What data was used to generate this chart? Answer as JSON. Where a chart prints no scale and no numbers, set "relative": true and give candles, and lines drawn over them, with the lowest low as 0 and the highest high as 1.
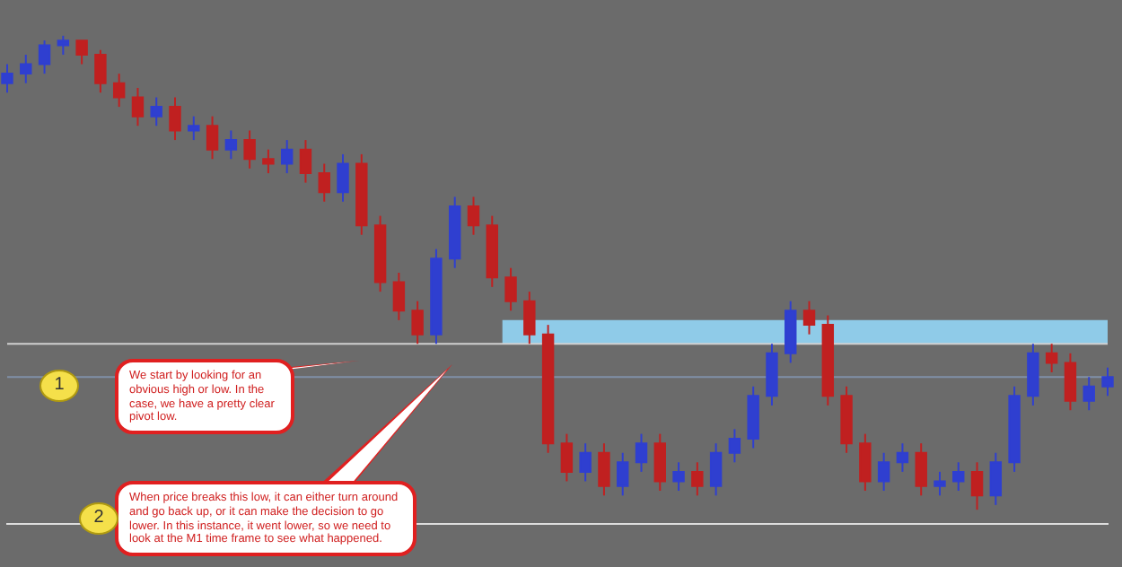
{
  "chart_data": {
    "type": "candlestick",
    "relative": true,
    "categories": [
      null,
      null,
      null,
      null,
      null,
      null,
      null,
      null,
      null,
      null,
      null,
      null,
      null,
      null,
      null,
      null,
      null,
      null,
      null,
      null,
      null,
      null,
      null,
      null,
      null,
      null,
      null,
      null,
      null,
      null,
      null,
      null,
      null,
      null,
      null,
      null,
      null,
      null,
      null,
      null,
      null,
      null,
      null,
      null,
      null,
      null,
      null,
      null,
      null,
      null,
      null,
      null,
      null,
      null,
      null,
      null,
      null,
      null,
      null,
      null
    ],
    "colors": [
      "#2f3fd0",
      "#2f3fd0",
      "#2f3fd0",
      "#2f3fd0",
      "#c02020",
      "#c02020",
      "#c02020",
      "#c02020",
      "#2f3fd0",
      "#c02020",
      "#2f3fd0",
      "#c02020",
      "#2f3fd0",
      "#c02020",
      "#c02020",
      "#2f3fd0",
      "#c02020",
      "#c02020",
      "#2f3fd0",
      "#c02020",
      "#c02020",
      "#c02020",
      "#c02020",
      "#2f3fd0",
      "#2f3fd0",
      "#c02020",
      "#c02020",
      "#c02020",
      "#c02020",
      "#c02020",
      "#c02020",
      "#2f3fd0",
      "#c02020",
      "#2f3fd0",
      "#2f3fd0",
      "#c02020",
      "#2f3fd0",
      "#c02020",
      "#2f3fd0",
      "#2f3fd0",
      "#2f3fd0",
      "#2f3fd0",
      "#2f3fd0",
      "#c02020",
      "#c02020",
      "#c02020",
      "#c02020",
      "#2f3fd0",
      "#2f3fd0",
      "#c02020",
      "#2f3fd0",
      "#2f3fd0",
      "#c02020",
      "#2f3fd0",
      "#2f3fd0",
      "#2f3fd0",
      "#c02020",
      "#c02020",
      "#2f3fd0",
      "#2f3fd0"
    ],
    "grid": false,
    "legend": false,
    "ohlc": [
      [
        0.9,
        0.94,
        0.88,
        0.92
      ],
      [
        0.92,
        0.96,
        0.9,
        0.94
      ],
      [
        0.94,
        0.99,
        0.92,
        0.98
      ],
      [
        0.98,
        1.0,
        0.96,
        0.99
      ],
      [
        0.99,
        0.99,
        0.94,
        0.96
      ],
      [
        0.96,
        0.97,
        0.88,
        0.9
      ],
      [
        0.9,
        0.92,
        0.85,
        0.87
      ],
      [
        0.87,
        0.89,
        0.81,
        0.83
      ],
      [
        0.83,
        0.87,
        0.81,
        0.85
      ],
      [
        0.85,
        0.87,
        0.78,
        0.8
      ],
      [
        0.8,
        0.83,
        0.78,
        0.81
      ],
      [
        0.81,
        0.83,
        0.74,
        0.76
      ],
      [
        0.76,
        0.8,
        0.74,
        0.78
      ],
      [
        0.78,
        0.8,
        0.72,
        0.74
      ],
      [
        0.74,
        0.76,
        0.71,
        0.73
      ],
      [
        0.73,
        0.78,
        0.71,
        0.76
      ],
      [
        0.76,
        0.78,
        0.69,
        0.71
      ],
      [
        0.71,
        0.73,
        0.65,
        0.67
      ],
      [
        0.67,
        0.75,
        0.65,
        0.73
      ],
      [
        0.73,
        0.75,
        0.58,
        0.6
      ],
      [
        0.6,
        0.62,
        0.46,
        0.48
      ],
      [
        0.48,
        0.5,
        0.4,
        0.42
      ],
      [
        0.42,
        0.44,
        0.35,
        0.37
      ],
      [
        0.37,
        0.55,
        0.35,
        0.53
      ],
      [
        0.53,
        0.66,
        0.51,
        0.64
      ],
      [
        0.64,
        0.66,
        0.58,
        0.6
      ],
      [
        0.6,
        0.62,
        0.47,
        0.49
      ],
      [
        0.49,
        0.51,
        0.42,
        0.44
      ],
      [
        0.44,
        0.46,
        0.35,
        0.37
      ],
      [
        0.37,
        0.39,
        0.12,
        0.14
      ],
      [
        0.14,
        0.16,
        0.06,
        0.08
      ],
      [
        0.08,
        0.14,
        0.06,
        0.12
      ],
      [
        0.12,
        0.14,
        0.03,
        0.05
      ],
      [
        0.05,
        0.12,
        0.03,
        0.1
      ],
      [
        0.1,
        0.16,
        0.08,
        0.14
      ],
      [
        0.14,
        0.16,
        0.04,
        0.06
      ],
      [
        0.06,
        0.1,
        0.04,
        0.08
      ],
      [
        0.08,
        0.1,
        0.03,
        0.05
      ],
      [
        0.05,
        0.14,
        0.03,
        0.12
      ],
      [
        0.12,
        0.17,
        0.1,
        0.15
      ],
      [
        0.15,
        0.26,
        0.13,
        0.24
      ],
      [
        0.24,
        0.35,
        0.22,
        0.33
      ],
      [
        0.33,
        0.44,
        0.31,
        0.42
      ],
      [
        0.42,
        0.44,
        0.37,
        0.39
      ],
      [
        0.39,
        0.41,
        0.22,
        0.24
      ],
      [
        0.24,
        0.26,
        0.12,
        0.14
      ],
      [
        0.14,
        0.16,
        0.04,
        0.06
      ],
      [
        0.06,
        0.12,
        0.04,
        0.1
      ],
      [
        0.1,
        0.14,
        0.08,
        0.12
      ],
      [
        0.12,
        0.14,
        0.03,
        0.05
      ],
      [
        0.05,
        0.08,
        0.03,
        0.06
      ],
      [
        0.06,
        0.1,
        0.04,
        0.08
      ],
      [
        0.08,
        0.1,
        0.0,
        0.03
      ],
      [
        0.03,
        0.12,
        0.01,
        0.1
      ],
      [
        0.1,
        0.26,
        0.08,
        0.24
      ],
      [
        0.24,
        0.35,
        0.22,
        0.33
      ],
      [
        0.33,
        0.35,
        0.29,
        0.31
      ],
      [
        0.31,
        0.33,
        0.21,
        0.23
      ],
      [
        0.23,
        0.28,
        0.21,
        0.26
      ],
      [
        0.26,
        0.3,
        0.24,
        0.28
      ]
    ],
    "bands": [
      {
        "axis": "y",
        "from": 0.35,
        "to": 0.4,
        "color": "#8fcbe8"
      }
    ],
    "ref_lines": [
      {
        "axis": "y",
        "value": 0.35,
        "color": "#d0d0d0"
      },
      {
        "axis": "y",
        "value": 0.28,
        "color": "#7f90a8"
      }
    ],
    "annotations": [
      "1",
      "We start by looking for an obvious high or low. In the case, we have a pretty clear pivot low.",
      "2",
      "When price breaks this low, it can either turn around and go back up, or it can make the decision to go lower. In this instance, it went lower, so we need to look at the M1 time frame to see what happened."
    ]
  }
}
